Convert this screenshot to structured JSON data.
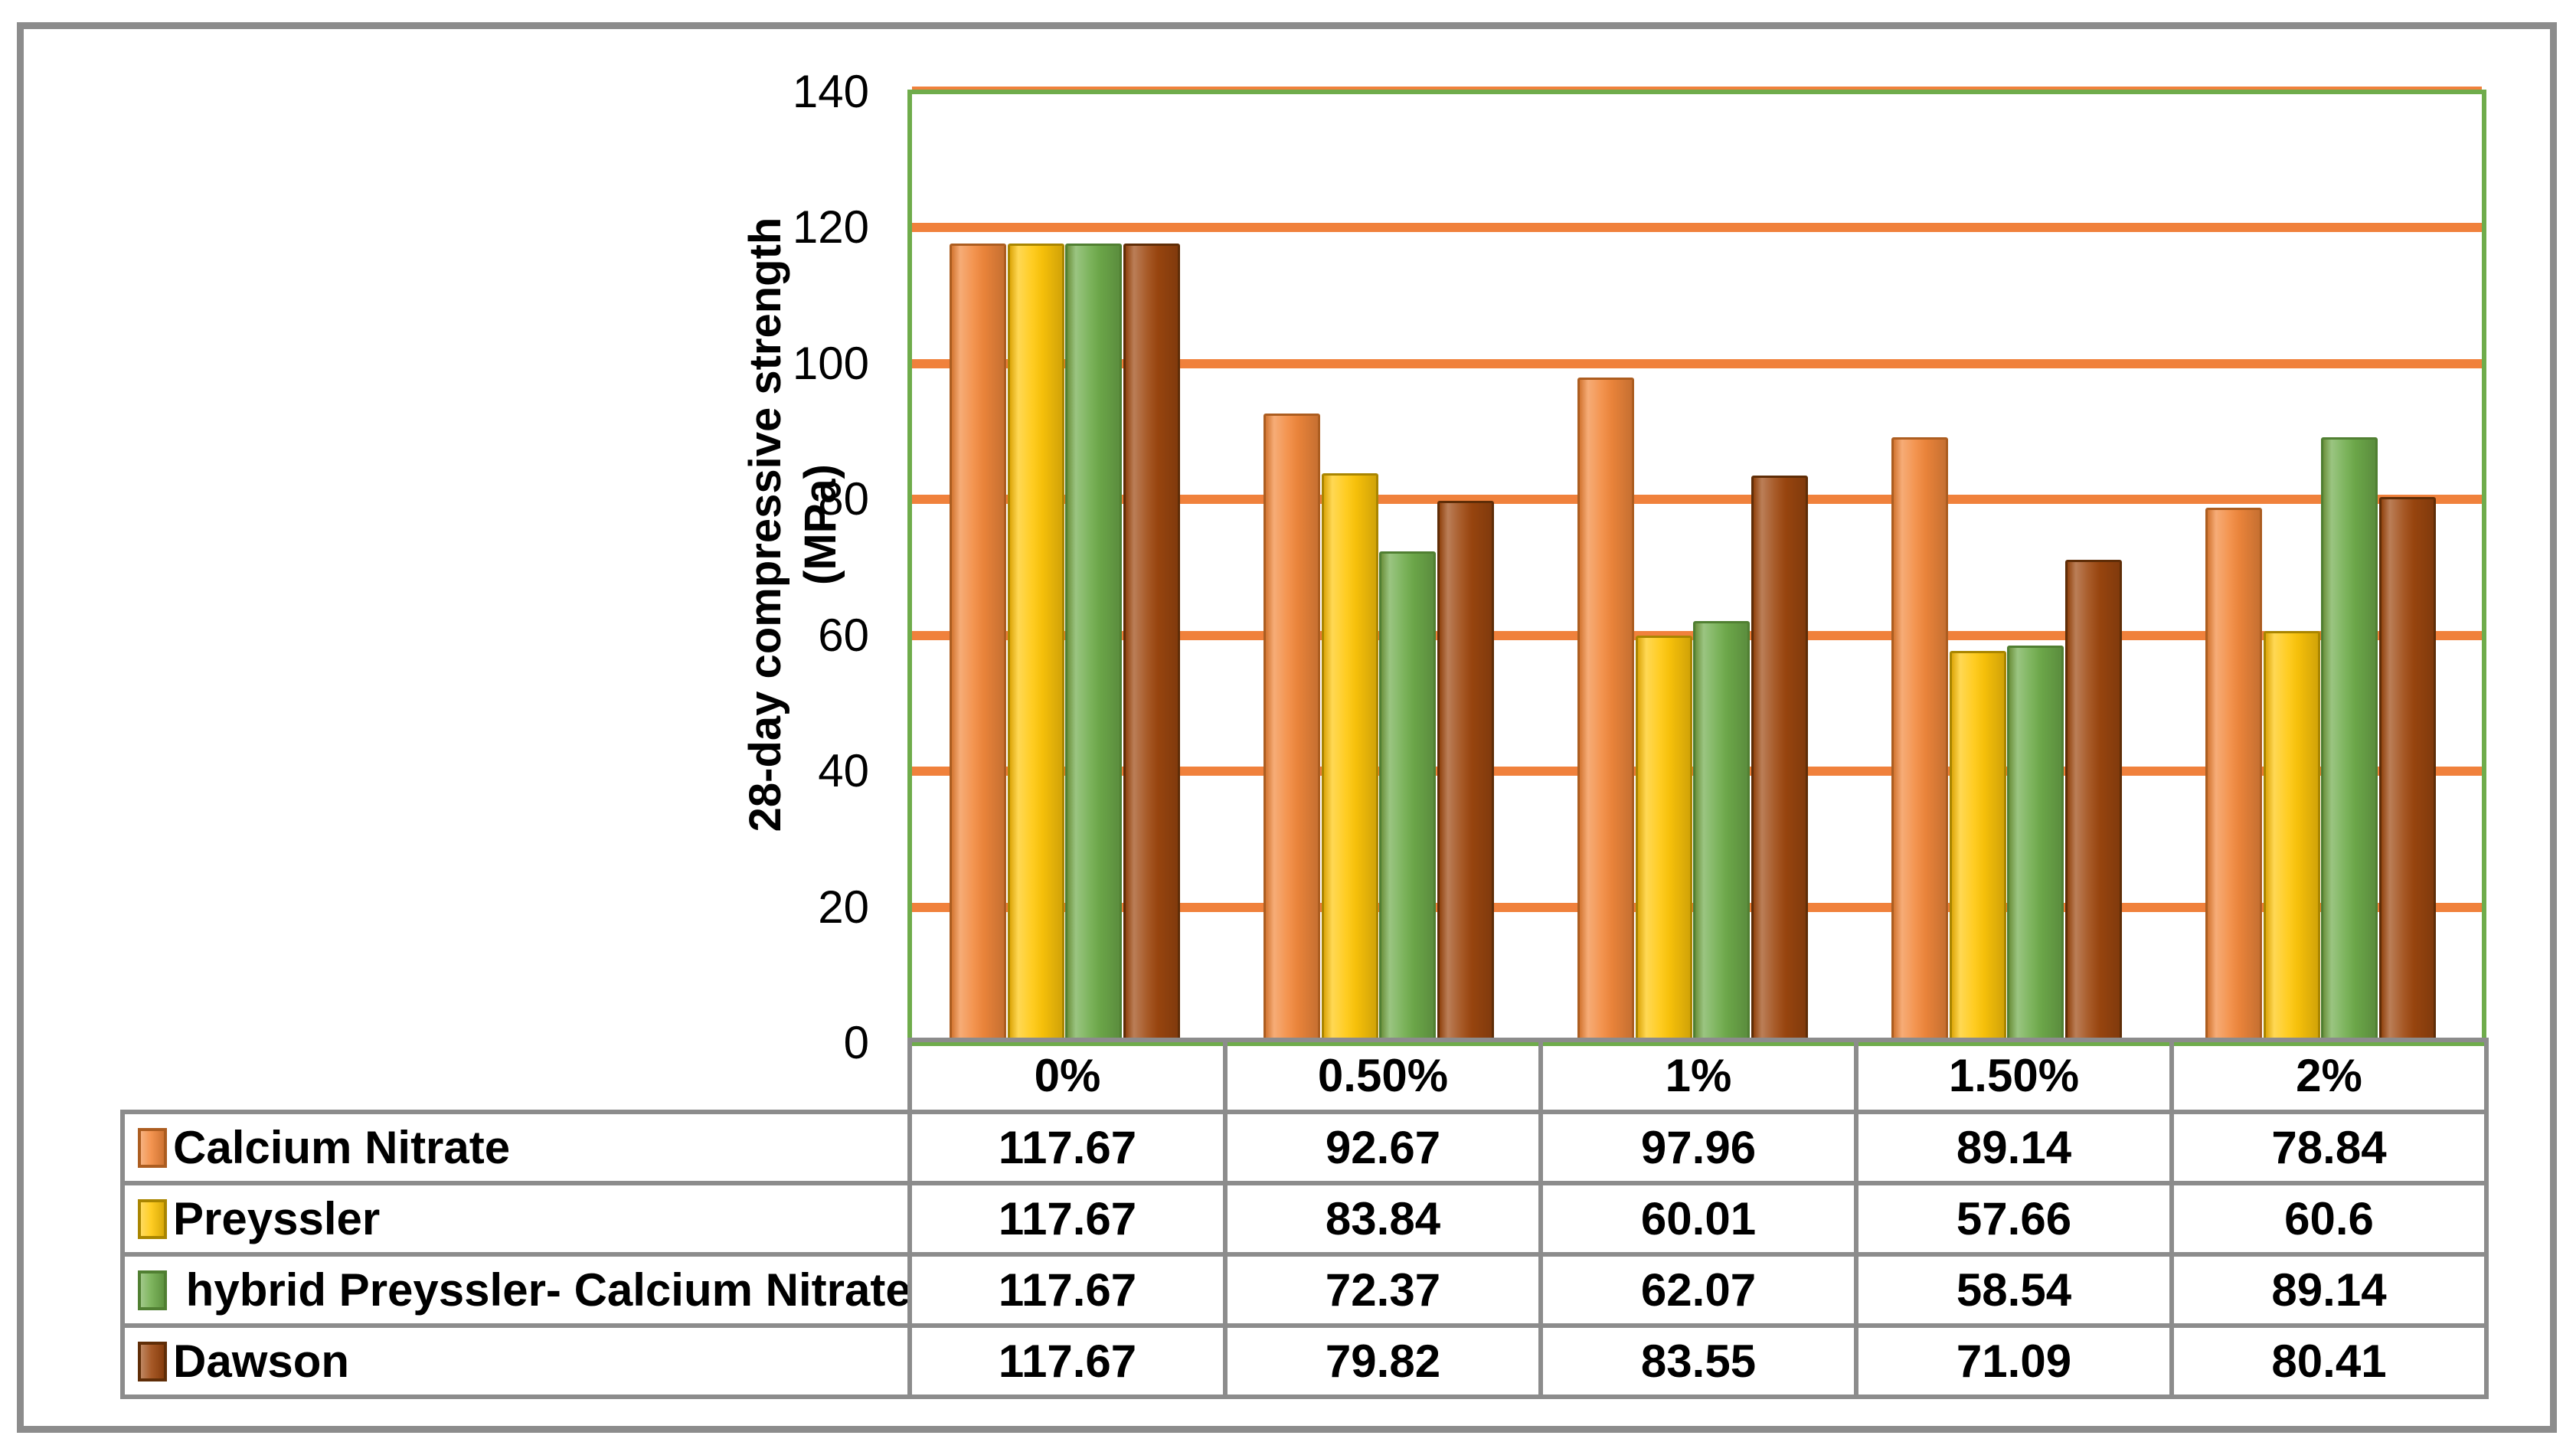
{
  "figure_kind": "clustered column chart with attached data table legend",
  "chart_data": {
    "type": "bar",
    "title": "",
    "xlabel": "",
    "ylabel": "28-day compressive strength (MPa)",
    "ylim": [
      0,
      140
    ],
    "ytick_step": 20,
    "yticks": [
      140,
      120,
      100,
      80,
      60,
      40,
      20,
      0
    ],
    "grid": "horizontal",
    "legend_position": "table-below-left",
    "categories": [
      "0%",
      "0.50%",
      "1%",
      "1.50%",
      "2%"
    ],
    "series": [
      {
        "name": "Calcium Nitrate",
        "display_name": "Calcium Nitrate",
        "fill": "#F2883C",
        "border": "#AC5D20",
        "values": [
          117.67,
          92.67,
          97.96,
          89.14,
          78.84
        ]
      },
      {
        "name": "Preyssler",
        "display_name": "Preyssler",
        "fill": "#FFC70A",
        "border": "#A98500",
        "values": [
          117.67,
          83.84,
          60.01,
          57.66,
          60.6
        ]
      },
      {
        "name": "hybrid Preyssler- Calcium Nitrate",
        "display_name": " hybrid Preyssler- Calcium Nitrate",
        "fill": "#6FAC4B",
        "border": "#507F32",
        "values": [
          117.67,
          72.37,
          62.07,
          58.54,
          89.14
        ]
      },
      {
        "name": "Dawson",
        "display_name": "Dawson",
        "fill": "#9D470F",
        "border": "#5F2D07",
        "values": [
          117.67,
          79.82,
          83.55,
          71.09,
          80.41
        ]
      }
    ],
    "colors": {
      "gridline": "#F0813C",
      "plot_border": "#6FAC4B",
      "table_border": "#8C8C8C",
      "outer_border": "#8C8C8C",
      "background": "#FFFFFF",
      "text": "#000000"
    }
  }
}
